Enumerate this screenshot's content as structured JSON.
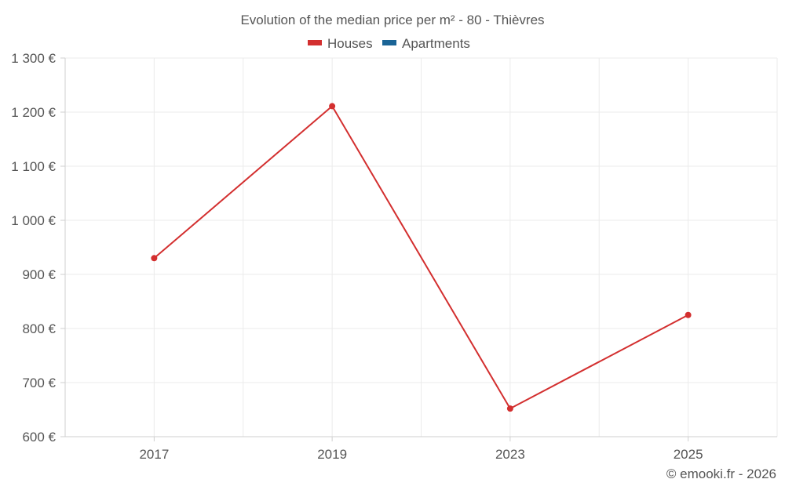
{
  "chart_data": {
    "type": "line",
    "title": "Evolution of the median price per m² - 80 - Thièvres",
    "categories": [
      "2017",
      "2019",
      "2023",
      "2025"
    ],
    "series": [
      {
        "name": "Houses",
        "color": "#d32f2f",
        "values": [
          930,
          1211,
          652,
          825
        ]
      },
      {
        "name": "Apartments",
        "color": "#1a6496",
        "values": [
          null,
          null,
          null,
          null
        ]
      }
    ],
    "ylim": [
      600,
      1300
    ],
    "yticks": [
      600,
      700,
      800,
      900,
      1000,
      1100,
      1200,
      1300
    ],
    "ytick_labels": [
      "600 €",
      "700 €",
      "800 €",
      "900 €",
      "1 000 €",
      "1 100 €",
      "1 200 €",
      "1 300 €"
    ],
    "xlabel": "",
    "ylabel": "",
    "grid": true,
    "legend_position": "top-center"
  },
  "credit": "© emooki.fr - 2026"
}
